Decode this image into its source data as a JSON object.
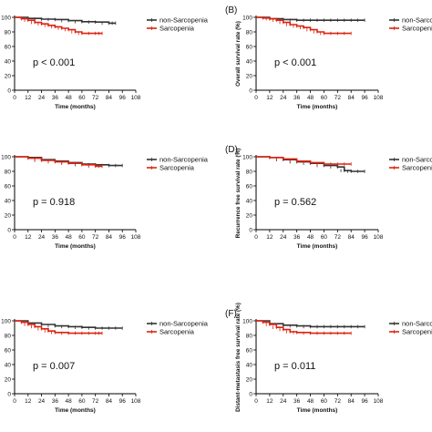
{
  "figure": {
    "legend": [
      {
        "name": "non-Sarcopenia",
        "color": "#333333"
      },
      {
        "name": "Sarcopenia",
        "color": "#dd2211"
      }
    ],
    "xlabel": "Time (months)",
    "xticks": [
      "0",
      "12",
      "24",
      "36",
      "48",
      "60",
      "72",
      "84",
      "96",
      "108"
    ],
    "yticks": [
      "0",
      "20",
      "40",
      "60",
      "80",
      "100"
    ]
  },
  "chart_data": [
    {
      "type": "line",
      "letter": "",
      "ylabel": "",
      "pvalue": "p < 0.001",
      "xlim": [
        0,
        108
      ],
      "ylim": [
        0,
        100
      ],
      "grid": false,
      "legend_placement": "right",
      "series": [
        {
          "name": "non-Sarcopenia",
          "color": "#333333",
          "x": [
            0,
            12,
            24,
            36,
            48,
            60,
            72,
            84,
            90
          ],
          "y": [
            100,
            98.5,
            97.5,
            97,
            95.5,
            94,
            93.5,
            92,
            92
          ]
        },
        {
          "name": "Sarcopenia",
          "color": "#dd2211",
          "x": [
            0,
            6,
            12,
            18,
            24,
            30,
            36,
            42,
            48,
            54,
            60,
            72,
            78
          ],
          "y": [
            100,
            98,
            96,
            93,
            91,
            89,
            87,
            85,
            83,
            80,
            78,
            78,
            78
          ]
        }
      ]
    },
    {
      "type": "line",
      "letter": "(B)",
      "ylabel": "Overall survival rate (%)",
      "pvalue": "p < 0.001",
      "xlim": [
        0,
        108
      ],
      "ylim": [
        0,
        100
      ],
      "grid": false,
      "legend_placement": "right",
      "series": [
        {
          "name": "non-Sarcopenia",
          "color": "#333333",
          "x": [
            0,
            12,
            24,
            36,
            48,
            60,
            72,
            84,
            96
          ],
          "y": [
            100,
            98,
            97,
            96,
            96,
            96,
            96,
            96,
            96
          ]
        },
        {
          "name": "Sarcopenia",
          "color": "#dd2211",
          "x": [
            0,
            6,
            12,
            18,
            24,
            30,
            36,
            42,
            48,
            54,
            60,
            72,
            84
          ],
          "y": [
            100,
            99,
            98,
            96,
            93,
            90,
            88,
            86,
            83,
            80,
            78,
            78,
            78
          ]
        }
      ]
    },
    {
      "type": "line",
      "letter": "",
      "ylabel": "",
      "pvalue": "p = 0.918",
      "xlim": [
        0,
        108
      ],
      "ylim": [
        0,
        100
      ],
      "grid": false,
      "legend_placement": "right",
      "series": [
        {
          "name": "non-Sarcopenia",
          "color": "#333333",
          "x": [
            0,
            12,
            24,
            36,
            48,
            60,
            72,
            84,
            96
          ],
          "y": [
            100,
            99,
            96,
            94,
            92,
            90,
            89,
            88,
            88
          ]
        },
        {
          "name": "Sarcopenia",
          "color": "#dd2211",
          "x": [
            0,
            12,
            24,
            36,
            48,
            60,
            72,
            78
          ],
          "y": [
            100,
            98,
            95,
            93,
            91,
            89,
            87,
            87
          ]
        }
      ]
    },
    {
      "type": "line",
      "letter": "(D)",
      "ylabel": "Recurrence free survival rate (%)",
      "pvalue": "p = 0.562",
      "xlim": [
        0,
        108
      ],
      "ylim": [
        0,
        100
      ],
      "grid": false,
      "legend_placement": "right",
      "series": [
        {
          "name": "non-Sarcopenia",
          "color": "#333333",
          "x": [
            0,
            12,
            24,
            36,
            48,
            60,
            72,
            78,
            84,
            96
          ],
          "y": [
            100,
            99,
            96,
            93,
            91,
            88,
            86,
            81,
            80,
            80
          ]
        },
        {
          "name": "Sarcopenia",
          "color": "#dd2211",
          "x": [
            0,
            12,
            24,
            36,
            48,
            60,
            72,
            84
          ],
          "y": [
            100,
            99,
            97,
            94,
            92,
            90,
            90,
            90
          ]
        }
      ]
    },
    {
      "type": "line",
      "letter": "",
      "ylabel": "",
      "pvalue": "p = 0.007",
      "xlim": [
        0,
        108
      ],
      "ylim": [
        0,
        100
      ],
      "grid": false,
      "legend_placement": "right",
      "series": [
        {
          "name": "non-Sarcopenia",
          "color": "#333333",
          "x": [
            0,
            12,
            24,
            36,
            48,
            60,
            72,
            84,
            96
          ],
          "y": [
            100,
            97,
            95,
            93,
            92,
            91,
            90,
            90,
            90
          ]
        },
        {
          "name": "Sarcopenia",
          "color": "#dd2211",
          "x": [
            0,
            6,
            12,
            18,
            24,
            30,
            36,
            48,
            60,
            72,
            78
          ],
          "y": [
            100,
            98,
            95,
            92,
            89,
            86,
            84,
            83,
            83,
            83,
            83
          ]
        }
      ]
    },
    {
      "type": "line",
      "letter": "(F)",
      "ylabel": "Distant-metastasis free survival rate (%)",
      "pvalue": "p = 0.011",
      "xlim": [
        0,
        108
      ],
      "ylim": [
        0,
        100
      ],
      "grid": false,
      "legend_placement": "right",
      "series": [
        {
          "name": "non-Sarcopenia",
          "color": "#333333",
          "x": [
            0,
            12,
            24,
            36,
            48,
            60,
            72,
            84,
            96
          ],
          "y": [
            100,
            96,
            94,
            93,
            92,
            92,
            92,
            92,
            92
          ]
        },
        {
          "name": "Sarcopenia",
          "color": "#dd2211",
          "x": [
            0,
            6,
            12,
            18,
            24,
            30,
            36,
            48,
            60,
            72,
            84
          ],
          "y": [
            100,
            98,
            95,
            91,
            88,
            85,
            84,
            83,
            83,
            83,
            83
          ]
        }
      ]
    }
  ]
}
